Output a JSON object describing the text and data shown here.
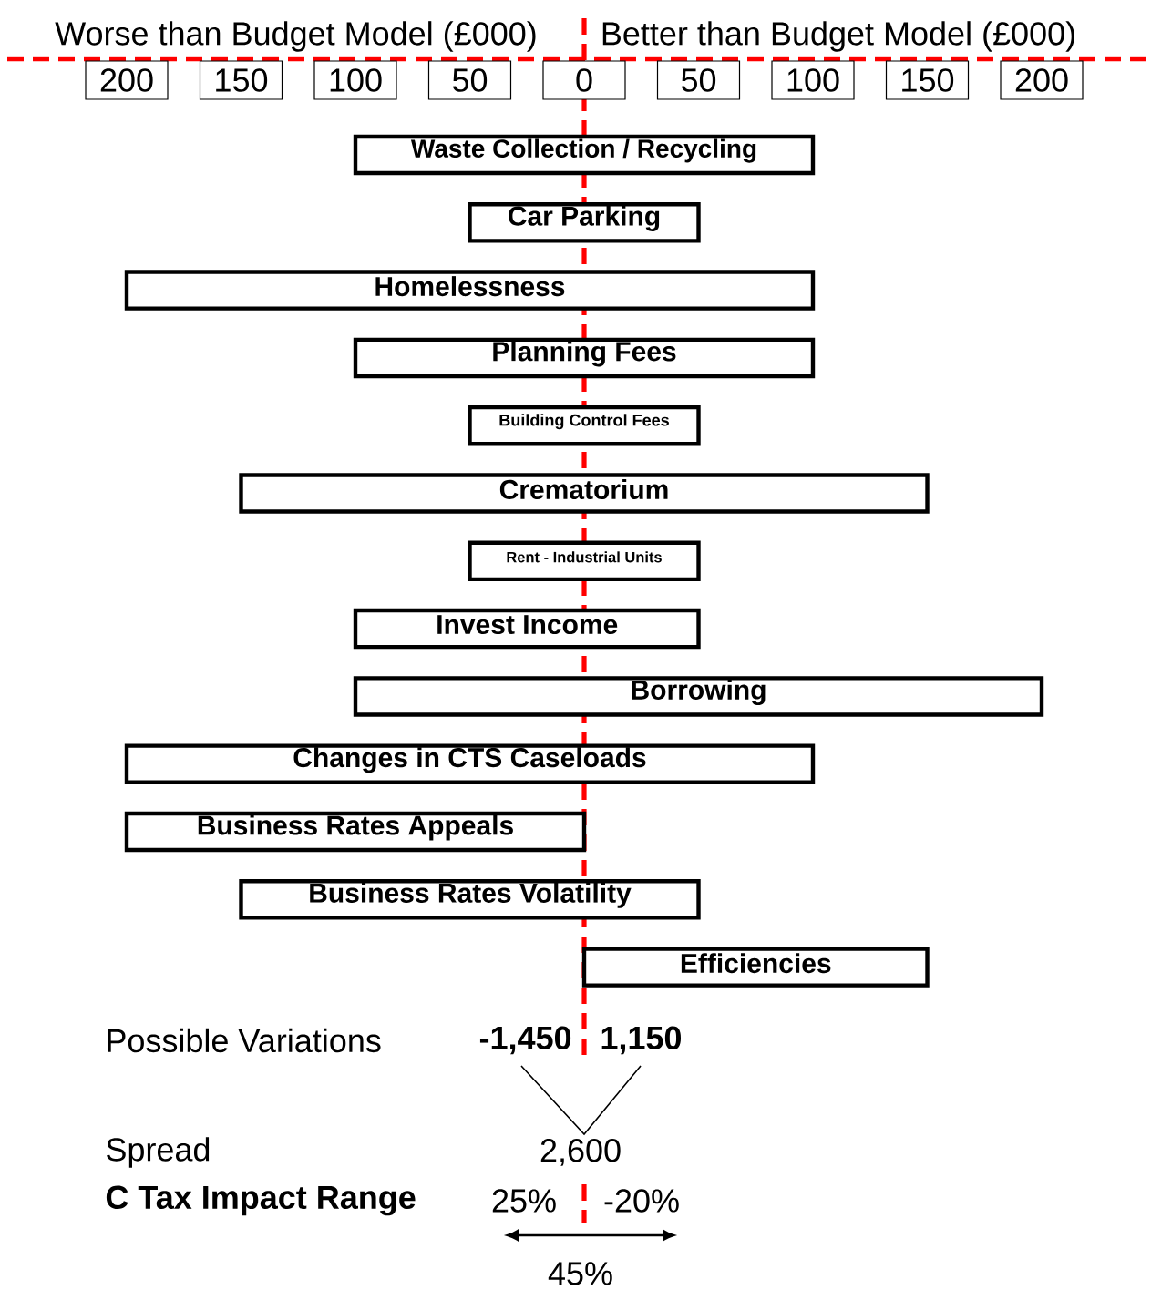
{
  "chart_data": {
    "type": "bar",
    "orientation": "horizontal",
    "color": "#ffffff",
    "categories": [
      "Waste Collection / Recycling",
      "Car Parking",
      "Homelessness",
      "Planning Fees",
      "Building Control Fees",
      "Crematorium",
      "Rent - Industrial Units",
      "Invest Income",
      "Borrowing",
      "Changes in CTS Caseloads",
      "Business Rates Appeals",
      "Business Rates Volatility",
      "Efficiencies"
    ],
    "base": [
      -100,
      -50,
      -200,
      -100,
      -50,
      -150,
      -50,
      -100,
      -100,
      -200,
      -200,
      -150,
      0
    ],
    "values": [
      200,
      100,
      300,
      200,
      100,
      300,
      100,
      150,
      300,
      300,
      200,
      200,
      150
    ],
    "xlim": [
      -200,
      200
    ],
    "xticks": [
      {
        "value": -200,
        "label": "200"
      },
      {
        "value": -150,
        "label": "150"
      },
      {
        "value": -100,
        "label": "100"
      },
      {
        "value": -50,
        "label": "50"
      },
      0,
      50,
      100,
      150,
      200
    ],
    "ref_lines": [
      {
        "axis": "x",
        "value": 0,
        "color": "#ff0000",
        "line_style": "dashed"
      }
    ],
    "annotations": [
      "Worse than Budget Model (£000)",
      "Better than Budget Model (£000)",
      "Possible Variations",
      "-1,450",
      "1,150",
      "Spread",
      "2,600",
      "C Tax Impact Range",
      "25%",
      "-20%",
      "45%"
    ]
  }
}
